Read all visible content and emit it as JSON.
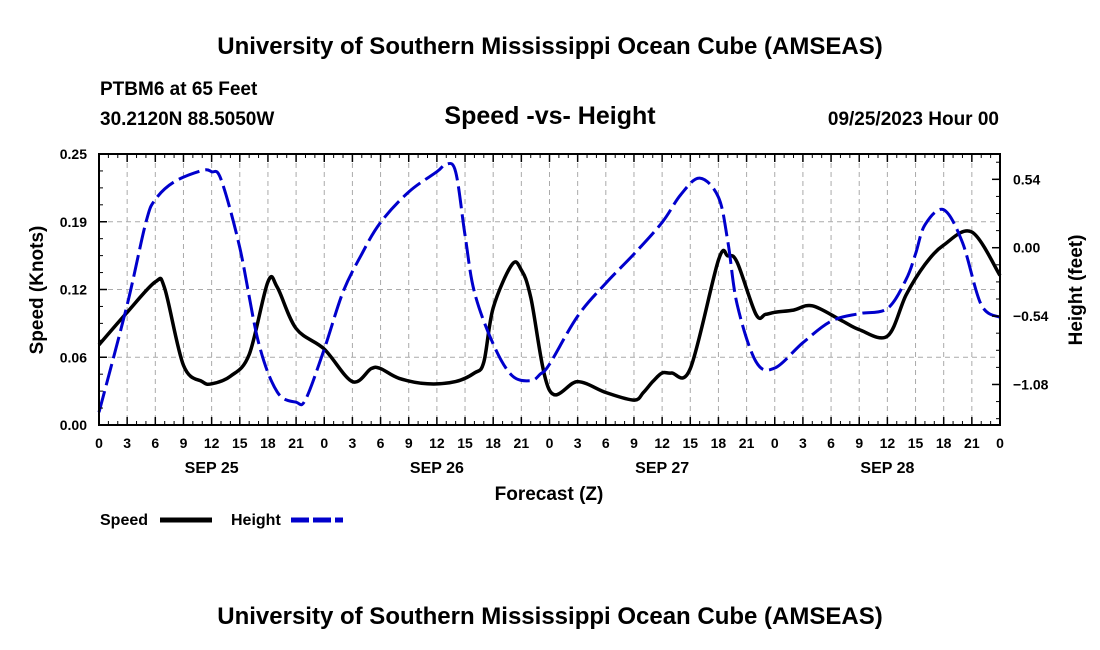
{
  "title": "University of Southern Mississippi Ocean Cube (AMSEAS)",
  "footer_title": "University of Southern Mississippi Ocean Cube (AMSEAS)",
  "station": {
    "name": "PTBM6 at 65 Feet",
    "coords": "30.2120N  88.5050W"
  },
  "run_time": "09/25/2023 Hour 00",
  "colors": {
    "speed": "#000000",
    "height": "#0000cc",
    "grid": "#aaaaaa"
  },
  "chart_data": {
    "type": "line",
    "title": "Speed -vs- Height",
    "xlabel": "Forecast (Z)",
    "ylabel_left": "Speed (Knots)",
    "ylabel_right": "Height (feet)",
    "x_range_hours": [
      0,
      96
    ],
    "x_tick_labels": [
      "0",
      "3",
      "6",
      "9",
      "12",
      "15",
      "18",
      "21",
      "0",
      "3",
      "6",
      "9",
      "12",
      "15",
      "18",
      "21",
      "0",
      "3",
      "6",
      "9",
      "12",
      "15",
      "18",
      "21",
      "0",
      "3",
      "6",
      "9",
      "12",
      "15",
      "18",
      "21",
      "0"
    ],
    "date_labels": [
      {
        "label": "SEP 25",
        "hour": 12
      },
      {
        "label": "SEP 26",
        "hour": 36
      },
      {
        "label": "SEP 27",
        "hour": 60
      },
      {
        "label": "SEP 28",
        "hour": 84
      }
    ],
    "ylim_left": [
      0,
      0.25
    ],
    "yticks_left": [
      "0.00",
      "0.06",
      "0.12",
      "0.19",
      "0.25"
    ],
    "ylim_right": [
      -1.4,
      0.74
    ],
    "yticks_right": [
      {
        "label": "0.54",
        "value": 0.54
      },
      {
        "label": "0.00",
        "value": 0.0
      },
      {
        "label": "−0.54",
        "value": -0.54
      },
      {
        "label": "−1.08",
        "value": -1.08
      }
    ],
    "series": [
      {
        "name": "Speed",
        "axis": "left",
        "style": "solid",
        "x": [
          0,
          3,
          6,
          7,
          9,
          11,
          12,
          14,
          16,
          18,
          19,
          21,
          24,
          27,
          29,
          30,
          32,
          35,
          38,
          40,
          41,
          42,
          44,
          45,
          46,
          48,
          51,
          54,
          57,
          58,
          59,
          60,
          61,
          63,
          66,
          67,
          68,
          70,
          71,
          72,
          74,
          76,
          79,
          81,
          84,
          86,
          88,
          90,
          93,
          96
        ],
        "values": [
          0.074,
          0.104,
          0.132,
          0.126,
          0.055,
          0.04,
          0.038,
          0.045,
          0.065,
          0.132,
          0.127,
          0.089,
          0.07,
          0.04,
          0.052,
          0.052,
          0.043,
          0.038,
          0.04,
          0.048,
          0.058,
          0.108,
          0.148,
          0.143,
          0.118,
          0.032,
          0.04,
          0.03,
          0.023,
          0.03,
          0.04,
          0.048,
          0.048,
          0.052,
          0.152,
          0.156,
          0.15,
          0.102,
          0.102,
          0.104,
          0.106,
          0.11,
          0.097,
          0.088,
          0.082,
          0.12,
          0.148,
          0.166,
          0.178,
          0.138
        ]
      },
      {
        "name": "Height",
        "axis": "right",
        "style": "dashed",
        "x": [
          0,
          3,
          5,
          6,
          8,
          11,
          12,
          13,
          15,
          17,
          19,
          21,
          22,
          24,
          26,
          28,
          30,
          33,
          36,
          37,
          38,
          39,
          40,
          42,
          44,
          46,
          47,
          48,
          51,
          54,
          57,
          60,
          62,
          64,
          66,
          67,
          68,
          70,
          72,
          75,
          78,
          81,
          84,
          86,
          87,
          88,
          90,
          92,
          94,
          96
        ],
        "values": [
          -1.3,
          -0.45,
          0.2,
          0.38,
          0.52,
          0.61,
          0.6,
          0.54,
          0.0,
          -0.75,
          -1.14,
          -1.22,
          -1.2,
          -0.8,
          -0.35,
          -0.05,
          0.2,
          0.44,
          0.6,
          0.66,
          0.6,
          0.1,
          -0.35,
          -0.76,
          -1.01,
          -1.05,
          -1.0,
          -0.92,
          -0.54,
          -0.28,
          -0.05,
          0.2,
          0.42,
          0.55,
          0.4,
          0.05,
          -0.45,
          -0.9,
          -0.95,
          -0.75,
          -0.58,
          -0.52,
          -0.48,
          -0.25,
          -0.05,
          0.18,
          0.3,
          0.04,
          -0.45,
          -0.55
        ]
      }
    ],
    "legend": {
      "placement": "bottom-left",
      "entries": [
        "Speed",
        "Height"
      ]
    }
  }
}
